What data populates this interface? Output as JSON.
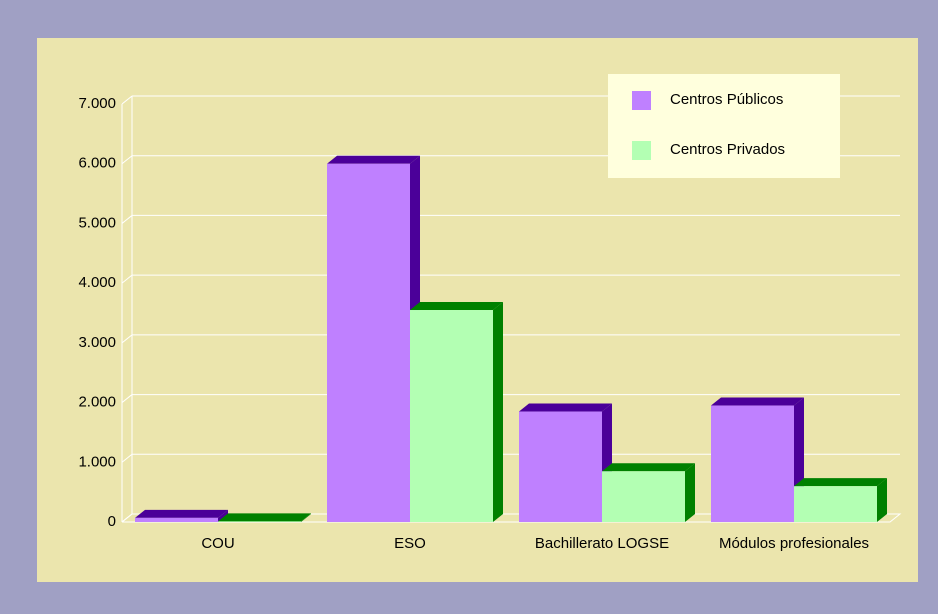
{
  "chart_data": {
    "type": "bar3d",
    "categories": [
      "COU",
      "ESO",
      "Bachillerato LOGSE",
      "Módulos profesionales"
    ],
    "series": [
      {
        "name": "Centros Públicos",
        "color": "#bf80ff",
        "values": [
          70,
          6000,
          1850,
          1950
        ]
      },
      {
        "name": "Centros Privados",
        "color": "#b3ffb3",
        "values": [
          10,
          3550,
          850,
          600
        ]
      }
    ],
    "ylim": [
      0,
      7000
    ],
    "yticks": [
      0,
      {
        "value": 1000,
        "label": "1.000"
      },
      {
        "value": 2000,
        "label": "2.000"
      },
      {
        "value": 3000,
        "label": "3.000"
      },
      {
        "value": 4000,
        "label": "4.000"
      },
      {
        "value": 5000,
        "label": "5.000"
      },
      {
        "value": 6000,
        "label": "6.000"
      },
      {
        "value": 7000,
        "label": "7.000"
      }
    ],
    "grid": true,
    "legend": "top-right"
  }
}
